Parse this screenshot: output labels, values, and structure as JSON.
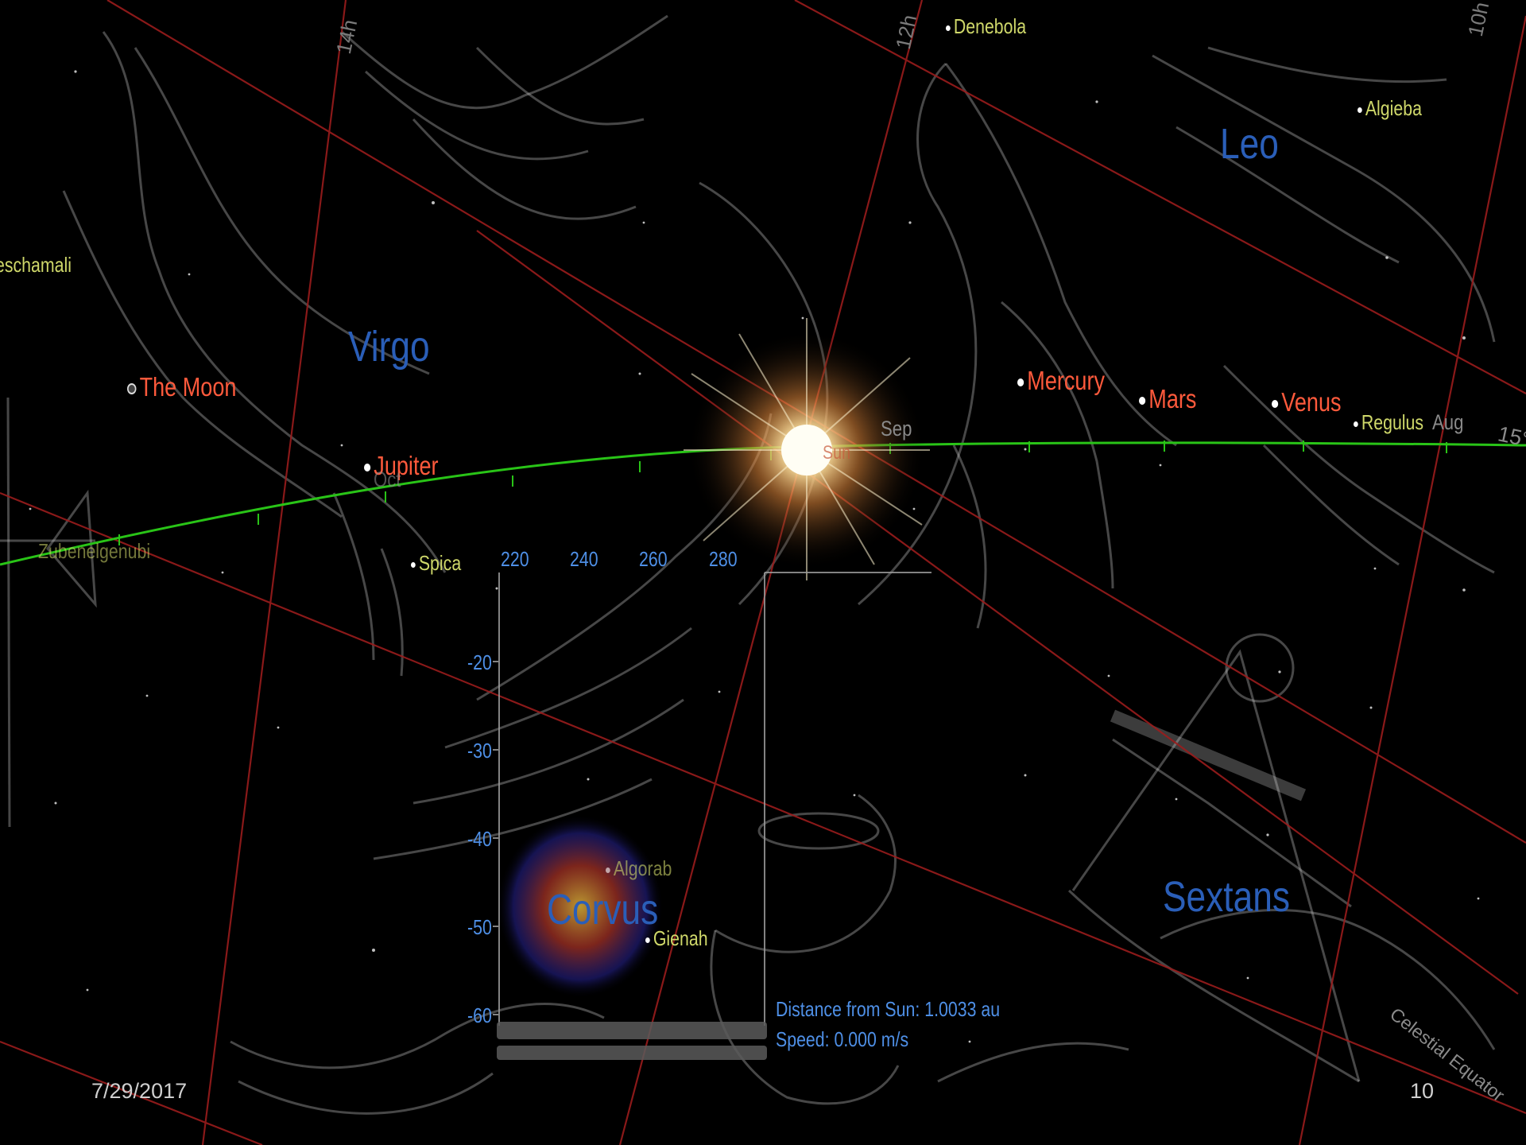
{
  "colors": {
    "ecliptic": "#29c417",
    "grid": "#9a1c1c",
    "planet_label": "#ff5a3c",
    "star_label": "#cfd86a",
    "constellation_label": "#2a5eb8",
    "graph_text": "#4e8fe6"
  },
  "ra_labels": {
    "h14": "14h",
    "h12": "12h",
    "h10": "10h"
  },
  "constellations": {
    "virgo": "Virgo",
    "leo": "Leo",
    "corvus": "Corvus",
    "sextans": "Sextans"
  },
  "planets": {
    "moon": "The Moon",
    "jupiter": "Jupiter",
    "mercury": "Mercury",
    "mars": "Mars",
    "venus": "Venus",
    "sun": "Sun"
  },
  "stars": {
    "denebola": "Denebola",
    "algieba": "Algieba",
    "regulus": "Regulus",
    "spica": "Spica",
    "algorab": "Algorab",
    "gienah": "Gienah",
    "zavijava": "eschamali",
    "zubenelgenubi": "Zubenelgenubi"
  },
  "months": {
    "sep": "Sep",
    "aug": "Aug",
    "oct": "Oct"
  },
  "degree_label": "15°",
  "equator_label": "Celestial Equator",
  "graph": {
    "x_ticks": [
      "220",
      "240",
      "260",
      "280"
    ],
    "y_ticks": [
      "-20",
      "-30",
      "-40",
      "-50",
      "-60"
    ]
  },
  "info": {
    "distance": "Distance from Sun: 1.0033 au",
    "speed": "Speed: 0.000 m/s"
  },
  "footer": {
    "date": "7/29/2017",
    "page": "10"
  }
}
